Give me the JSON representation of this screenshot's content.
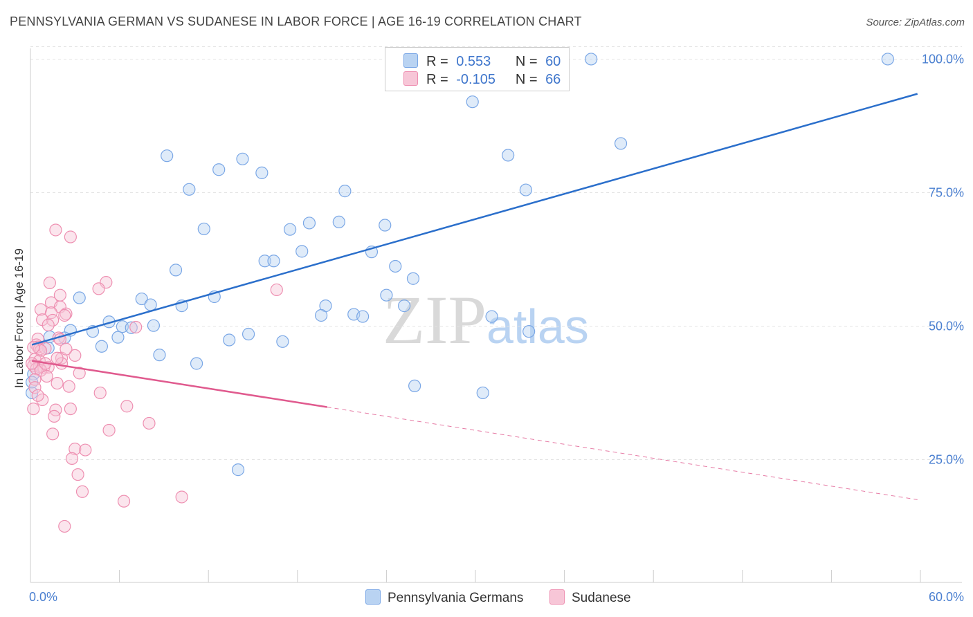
{
  "title": "PENNSYLVANIA GERMAN VS SUDANESE IN LABOR FORCE | AGE 16-19 CORRELATION CHART",
  "source": "Source: ZipAtlas.com",
  "watermark": {
    "zip": "ZIP",
    "atlas": "atlas"
  },
  "legend": {
    "r_label": "R =",
    "n_label": "N =",
    "series": [
      {
        "r": "0.553",
        "n": "60"
      },
      {
        "r": "-0.105",
        "n": "66"
      }
    ]
  },
  "chart_data": {
    "type": "scatter",
    "title": "PENNSYLVANIA GERMAN VS SUDANESE IN LABOR FORCE | AGE 16-19 CORRELATION CHART",
    "xlabel": "",
    "ylabel": "In Labor Force | Age 16-19",
    "xlim": [
      0,
      60
    ],
    "ylim": [
      2,
      102
    ],
    "x_tick_labels": [
      "0.0%",
      "60.0%"
    ],
    "y_ticks": [
      25,
      50,
      75,
      100
    ],
    "y_tick_labels": [
      "25.0%",
      "50.0%",
      "75.0%",
      "100.0%"
    ],
    "legend_position": "top-center",
    "series": [
      {
        "name": "Pennsylvania Germans",
        "color": "#7aa7e6",
        "fill": "#b9d3f2",
        "line_color": "#2b6fcb",
        "trend": {
          "x0": 0.1,
          "y0": 46.5,
          "x1": 59.8,
          "y1": 93.5,
          "dash_from": null
        },
        "points": [
          [
            28.2,
            100.0
          ],
          [
            37.8,
            100.0
          ],
          [
            57.8,
            100.0
          ],
          [
            29.8,
            92.0
          ],
          [
            39.8,
            84.2
          ],
          [
            9.2,
            81.9
          ],
          [
            14.3,
            81.3
          ],
          [
            32.2,
            82.0
          ],
          [
            12.7,
            79.3
          ],
          [
            15.6,
            78.7
          ],
          [
            10.7,
            75.6
          ],
          [
            21.2,
            75.3
          ],
          [
            33.4,
            75.5
          ],
          [
            11.7,
            68.2
          ],
          [
            17.5,
            68.1
          ],
          [
            18.8,
            69.3
          ],
          [
            20.8,
            69.5
          ],
          [
            23.9,
            68.9
          ],
          [
            18.3,
            64.0
          ],
          [
            23.0,
            63.9
          ],
          [
            15.8,
            62.2
          ],
          [
            16.4,
            62.2
          ],
          [
            24.6,
            61.2
          ],
          [
            9.8,
            60.5
          ],
          [
            25.8,
            58.9
          ],
          [
            3.3,
            55.3
          ],
          [
            7.5,
            55.1
          ],
          [
            12.4,
            55.5
          ],
          [
            24.0,
            55.8
          ],
          [
            8.1,
            54.0
          ],
          [
            10.2,
            53.8
          ],
          [
            19.9,
            53.8
          ],
          [
            25.2,
            53.8
          ],
          [
            5.3,
            50.8
          ],
          [
            6.2,
            49.9
          ],
          [
            6.8,
            49.7
          ],
          [
            8.3,
            50.1
          ],
          [
            19.6,
            52.0
          ],
          [
            21.8,
            52.2
          ],
          [
            22.4,
            51.8
          ],
          [
            31.1,
            51.8
          ],
          [
            2.7,
            49.2
          ],
          [
            4.2,
            49.0
          ],
          [
            5.9,
            47.9
          ],
          [
            13.4,
            47.4
          ],
          [
            14.7,
            48.5
          ],
          [
            17.0,
            47.1
          ],
          [
            33.6,
            49.0
          ],
          [
            1.3,
            48.0
          ],
          [
            2.3,
            47.8
          ],
          [
            1.2,
            45.9
          ],
          [
            4.8,
            46.2
          ],
          [
            8.7,
            44.6
          ],
          [
            11.2,
            43.0
          ],
          [
            25.9,
            38.8
          ],
          [
            30.5,
            37.5
          ],
          [
            14.0,
            23.1
          ],
          [
            0.2,
            41.0
          ],
          [
            0.1,
            39.5
          ],
          [
            0.1,
            37.5
          ]
        ]
      },
      {
        "name": "Sudanese",
        "color": "#ee8fb1",
        "fill": "#f7c6d7",
        "line_color": "#e05a8e",
        "trend": {
          "x0": 0.1,
          "y0": 43.5,
          "x1": 59.8,
          "y1": 17.5,
          "dash_from": 20.0
        },
        "points": [
          [
            1.7,
            68.0
          ],
          [
            2.7,
            66.7
          ],
          [
            1.3,
            58.1
          ],
          [
            5.1,
            58.2
          ],
          [
            4.6,
            57.0
          ],
          [
            16.6,
            56.8
          ],
          [
            2.0,
            55.8
          ],
          [
            1.4,
            54.4
          ],
          [
            2.0,
            53.6
          ],
          [
            0.7,
            53.1
          ],
          [
            1.4,
            52.5
          ],
          [
            2.4,
            52.3
          ],
          [
            2.3,
            52.0
          ],
          [
            0.8,
            51.2
          ],
          [
            1.5,
            51.1
          ],
          [
            1.2,
            50.2
          ],
          [
            7.1,
            49.8
          ],
          [
            1.9,
            47.8
          ],
          [
            0.5,
            47.6
          ],
          [
            2.0,
            47.5
          ],
          [
            0.4,
            46.5
          ],
          [
            0.5,
            46.1
          ],
          [
            0.6,
            45.7
          ],
          [
            1.0,
            45.8
          ],
          [
            0.7,
            45.4
          ],
          [
            3.0,
            44.5
          ],
          [
            2.1,
            44.0
          ],
          [
            0.3,
            43.8
          ],
          [
            0.6,
            43.5
          ],
          [
            2.1,
            43.0
          ],
          [
            0.2,
            42.6
          ],
          [
            0.6,
            42.4
          ],
          [
            0.9,
            42.2
          ],
          [
            1.2,
            42.3
          ],
          [
            0.4,
            42.0
          ],
          [
            0.7,
            41.7
          ],
          [
            3.3,
            41.2
          ],
          [
            1.1,
            40.6
          ],
          [
            0.3,
            40.0
          ],
          [
            1.8,
            39.3
          ],
          [
            2.6,
            38.7
          ],
          [
            4.7,
            37.5
          ],
          [
            0.8,
            36.2
          ],
          [
            6.5,
            35.0
          ],
          [
            0.2,
            34.5
          ],
          [
            1.7,
            34.3
          ],
          [
            2.7,
            34.5
          ],
          [
            1.6,
            33.1
          ],
          [
            8.0,
            31.8
          ],
          [
            5.3,
            30.5
          ],
          [
            1.5,
            29.8
          ],
          [
            3.0,
            27.0
          ],
          [
            3.7,
            26.8
          ],
          [
            2.8,
            25.2
          ],
          [
            3.2,
            22.2
          ],
          [
            3.5,
            19.0
          ],
          [
            6.3,
            17.2
          ],
          [
            10.2,
            18.0
          ],
          [
            2.3,
            12.5
          ],
          [
            0.3,
            38.5
          ],
          [
            0.1,
            43.0
          ],
          [
            0.2,
            46.0
          ],
          [
            1.0,
            43.0
          ],
          [
            0.5,
            37.0
          ],
          [
            1.8,
            44.0
          ],
          [
            2.4,
            45.7
          ]
        ]
      }
    ]
  }
}
